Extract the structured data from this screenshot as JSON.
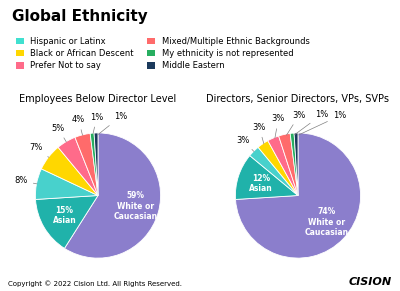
{
  "title": "Global Ethnicity",
  "legend": "upper left",
  "series": [
    {
      "name": "Hispanic or Latinx",
      "color": "#40E0D0"
    },
    {
      "name": "Black or African Descent",
      "color": "#FFD700"
    },
    {
      "name": "Prefer Not to say",
      "color": "#FF6B8A"
    },
    {
      "name": "Mixed/Multiple Ethnic Backgrounds",
      "color": "#FF6B6B"
    },
    {
      "name": "My ethnicity is not represented",
      "color": "#27AE60"
    },
    {
      "name": "Middle Eastern",
      "color": "#1B3A5C"
    }
  ],
  "annotations": [
    "Copyright © 2022 Cision Ltd. All Rights Reserved.",
    "CISION"
  ],
  "chart_data": [
    {
      "type": "pie",
      "title": "Employees Below Director Level",
      "values": [
        59,
        15,
        8,
        7,
        5,
        4,
        1,
        1
      ],
      "value_labels": [
        "59%\nWhite or\nCaucasian",
        "15%\nAsian",
        "8%",
        "7%",
        "5%",
        "4%",
        "1%",
        "1%"
      ],
      "colors": [
        "#8B7ECC",
        "#20B2AA",
        "#48D1CC",
        "#FFD700",
        "#FF6B8A",
        "#FF6B6B",
        "#27AE60",
        "#1B3A5C"
      ],
      "data_labels": true
    },
    {
      "type": "pie",
      "title": "Directors, Senior Directors, VPs, SVPs",
      "values": [
        74,
        12,
        3,
        3,
        3,
        3,
        1,
        1
      ],
      "value_labels": [
        "74%\nWhite or\nCaucasian",
        "12%\nAsian",
        "3%",
        "3%",
        "3%",
        "3%",
        "1%",
        "1%"
      ],
      "colors": [
        "#8B7ECC",
        "#20B2AA",
        "#48D1CC",
        "#FFD700",
        "#FF6B8A",
        "#FF6B6B",
        "#27AE60",
        "#1B3A5C"
      ],
      "data_labels": true
    }
  ]
}
